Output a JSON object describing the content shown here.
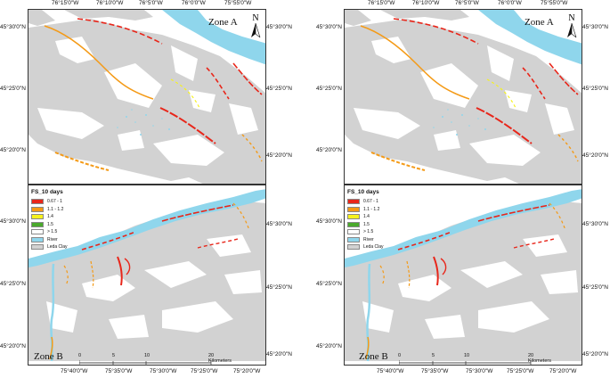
{
  "legend": {
    "title": "FS_10 days",
    "items": [
      {
        "label": "0.67 - 1",
        "color": "#e8261a"
      },
      {
        "label": "1.1 - 1.2",
        "color": "#f49a16"
      },
      {
        "label": "1.4",
        "color": "#f6f21d"
      },
      {
        "label": "1.5",
        "color": "#4aa92c"
      },
      {
        "label": "> 1.5",
        "color": "#ffffff"
      },
      {
        "label": "River",
        "color": "#8fd6ec"
      },
      {
        "label": "Leda Clay",
        "color": "#d2d2d2"
      }
    ]
  },
  "zone_a": {
    "label": "Zone A",
    "north": "N",
    "top_ticks": [
      "76°15'0\"W",
      "76°10'0\"W",
      "76°5'0\"W",
      "76°0'0\"W",
      "75°55'0\"W"
    ],
    "left_ticks": [
      "45°30'0\"N",
      "45°25'0\"N",
      "45°20'0\"N"
    ],
    "right_ticks": [
      "45°30'0\"N",
      "45°25'0\"N",
      "45°20'0\"N"
    ]
  },
  "zone_b": {
    "label": "Zone B",
    "bottom_ticks": [
      "75°40'0\"W",
      "75°35'0\"W",
      "75°30'0\"W",
      "75°25'0\"W",
      "75°20'0\"W"
    ],
    "left_ticks": [
      "45°30'0\"N",
      "45°25'0\"N",
      "45°20'0\"N"
    ],
    "right_ticks": [
      "45°30'0\"N",
      "45°25'0\"N",
      "45°20'0\"N"
    ],
    "scale_labels": [
      "0",
      "5",
      "10",
      "20 Kilometers"
    ]
  },
  "colors": {
    "river": "#8fd6ec",
    "clay": "#d2d2d2",
    "high": "#e8261a",
    "mid": "#f49a16",
    "low": "#f6f21d"
  }
}
